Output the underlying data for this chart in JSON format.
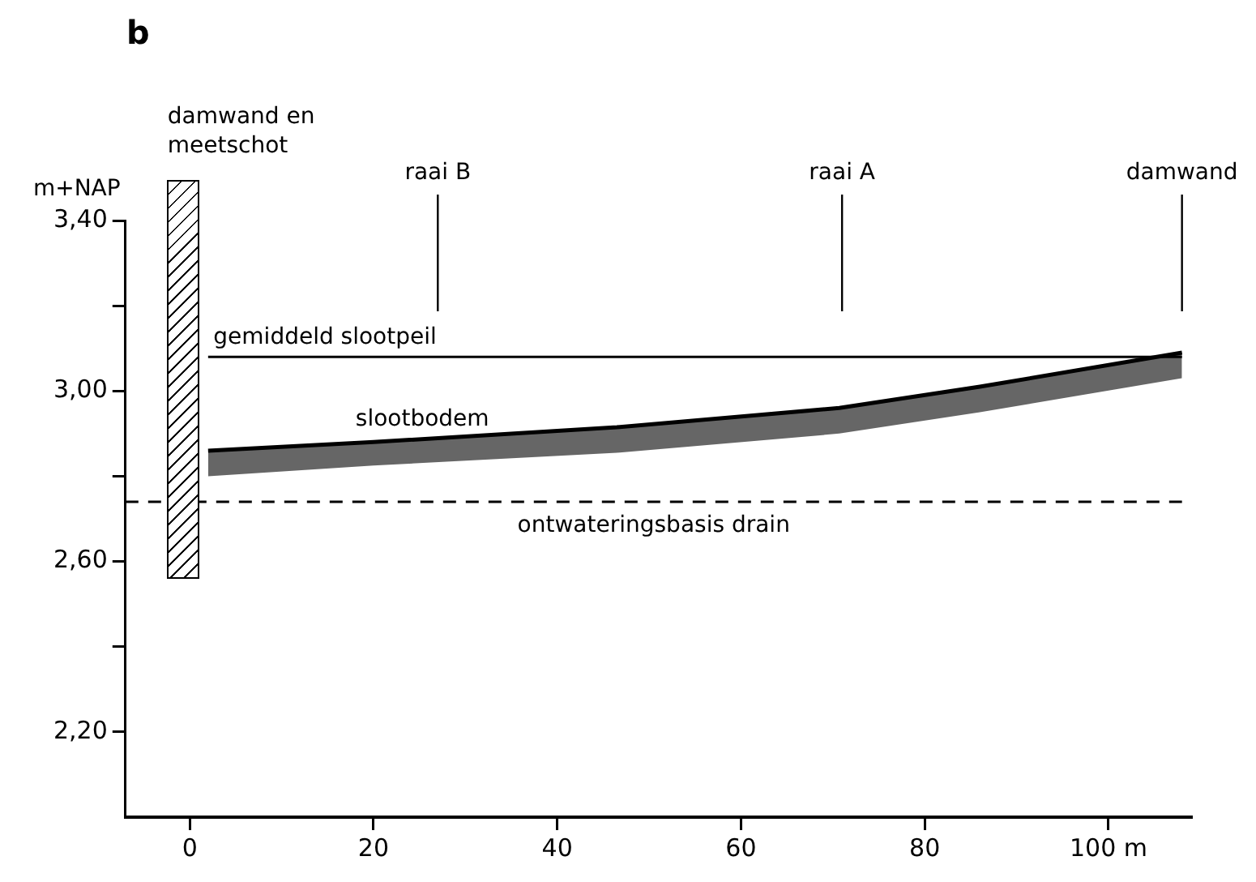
{
  "chart_data": {
    "type": "line",
    "title": "b",
    "ylabel": "m+NAP",
    "xlim": [
      -7,
      109
    ],
    "xticks": [
      0,
      20,
      40,
      60,
      80,
      {
        "value": 100,
        "label": "100 m"
      }
    ],
    "ylim": [
      2.0,
      3.4
    ],
    "yticks": [
      {
        "value": 2.2,
        "label": "2,20"
      },
      {
        "value": 2.4,
        "label": null
      },
      {
        "value": 2.6,
        "label": "2,60"
      },
      {
        "value": 2.8,
        "label": null
      },
      {
        "value": 3.0,
        "label": "3,00"
      },
      {
        "value": 3.2,
        "label": null
      },
      {
        "value": 3.4,
        "label": "3,40"
      }
    ],
    "grid": false,
    "legend": false,
    "marker": "none",
    "series": [
      {
        "name": "gemiddeld slootpeil",
        "color": "#000000",
        "x": [
          2,
          108
        ],
        "values": [
          3.08,
          3.08
        ]
      },
      {
        "name": "slootbodem",
        "color": "#000000",
        "x": [
          2,
          20,
          46.5,
          70.7,
          86,
          108
        ],
        "values": [
          2.86,
          2.88,
          2.915,
          2.96,
          3.01,
          3.09
        ],
        "lower": [
          2.8,
          2.825,
          2.855,
          2.9,
          2.95,
          3.03
        ],
        "upper": [
          2.86,
          2.88,
          2.915,
          2.96,
          3.01,
          3.09
        ]
      },
      {
        "name": "ontwateringsbasis drain",
        "color": "#000000",
        "x": [
          -7,
          108
        ],
        "values": [
          2.74,
          2.74
        ],
        "line_style": "dashed"
      }
    ],
    "ref_lines": [
      {
        "axis": "x",
        "value": 27,
        "label": "raai B"
      },
      {
        "axis": "x",
        "value": 71,
        "label": "raai A"
      },
      {
        "axis": "x",
        "value": 108,
        "label": "damwand"
      }
    ],
    "annotations": [
      "damwand en meetschot"
    ]
  }
}
